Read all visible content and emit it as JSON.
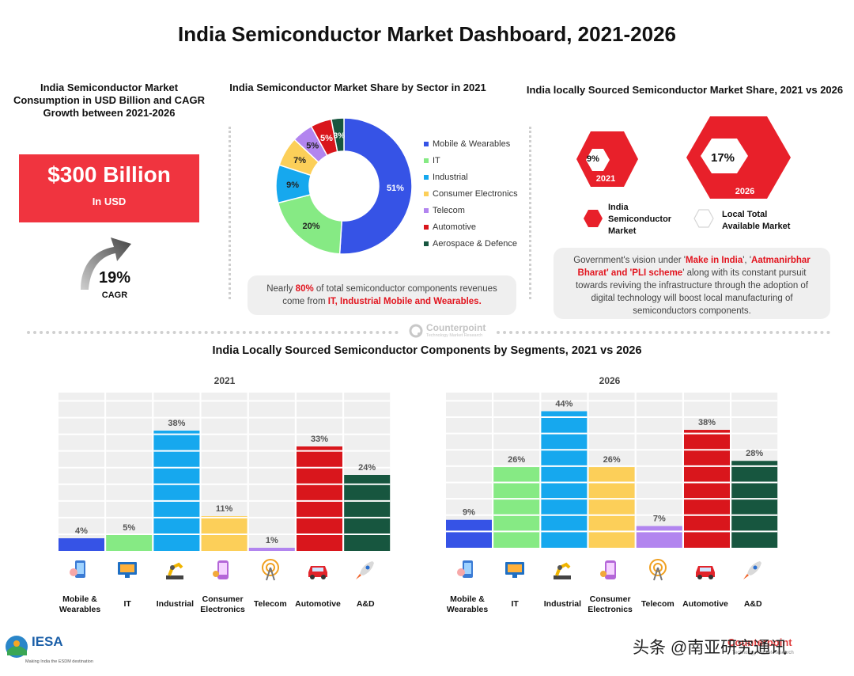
{
  "title": "India Semiconductor Market Dashboard, 2021-2026",
  "consumption": {
    "heading_line1": "India Semiconductor Market",
    "heading_line2": "Consumption in USD Billion and CAGR",
    "heading_line3": "Growth between 2021-2026",
    "value": "$300 Billion",
    "unit": "In USD",
    "cagr_value": "19%",
    "cagr_label": "CAGR"
  },
  "sector_share": {
    "heading": "India Semiconductor Market Share by Sector in 2021",
    "note_pre": "Nearly ",
    "note_pct": "80%",
    "note_mid": " of total semiconductor components revenues",
    "note_line2_pre": "come from ",
    "note_highlight": "IT, Industrial Mobile and Wearables."
  },
  "local_share": {
    "heading": "India locally Sourced Semiconductor Market Share, 2021 vs 2026",
    "hex_2021_value": "9%",
    "hex_2021_year": "2021",
    "hex_2026_value": "17%",
    "hex_2026_year": "2026",
    "legend_india_1": "India",
    "legend_india_2": "Semiconductor",
    "legend_india_3": "Market",
    "legend_local_1": "Local Total",
    "legend_local_2": "Available Market",
    "note_l1_pre": "Government's vision under '",
    "note_l1_h1": "Make in India",
    "note_l1_mid": "', '",
    "note_l1_h2": "Aatmanirbhar",
    "note_l2_h": "Bharat' and 'PLI scheme",
    "note_l2_post": "' along with its constant pursuit",
    "note_l3": "towards reviving the infrastructure through the adoption of",
    "note_l4": "digital technology will boost local manufacturing of",
    "note_l5": "semiconductors components."
  },
  "counterpoint": {
    "name": "Counterpoint",
    "sub": "Technology Market Research"
  },
  "segments": {
    "heading": "India Locally Sourced Semiconductor Components by Segments, 2021 vs 2026",
    "labels": [
      [
        "Mobile &",
        "Wearables"
      ],
      [
        "IT"
      ],
      [
        "Industrial"
      ],
      [
        "Consumer",
        "Electronics"
      ],
      [
        "Telecom"
      ],
      [
        "Automotive"
      ],
      [
        "A&D"
      ]
    ],
    "icons": [
      "mobile-icon",
      "monitor-icon",
      "robot-arm-icon",
      "gadgets-icon",
      "antenna-icon",
      "car-icon",
      "rocket-icon"
    ]
  },
  "footer": {
    "iesa": "IESA",
    "iesa_tag": "Making India the ESDM destination",
    "watermark": "头条 @南亚研究通讯",
    "cp_name": "Counterpoint",
    "cp_sub": "Technology Market Research"
  },
  "chart_data": [
    {
      "type": "pie",
      "title": "India Semiconductor Market Share by Sector in 2021",
      "categories": [
        "Mobile & Wearables",
        "IT",
        "Industrial",
        "Consumer Electronics",
        "Telecom",
        "Automotive",
        "Aerospace & Defence"
      ],
      "values": [
        51,
        20,
        9,
        7,
        5,
        5,
        3
      ],
      "labels": [
        "51%",
        "20%",
        "9%",
        "7%",
        "5%",
        "5%",
        "3%"
      ],
      "colors": [
        "#3653e6",
        "#86ea84",
        "#16a8ee",
        "#fccf59",
        "#b285ef",
        "#d9161c",
        "#17563f"
      ],
      "donut": true
    },
    {
      "type": "bar",
      "title": "2021",
      "categories": [
        "Mobile & Wearables",
        "IT",
        "Industrial",
        "Consumer Electronics",
        "Telecom",
        "Automotive",
        "A&D"
      ],
      "values": [
        4,
        5,
        38,
        11,
        1,
        33,
        24
      ],
      "labels": [
        "4%",
        "5%",
        "38%",
        "11%",
        "1%",
        "33%",
        "24%"
      ],
      "colors": [
        "#3653e6",
        "#86ea84",
        "#16a8ee",
        "#fccf59",
        "#b285ef",
        "#d9161c",
        "#17563f"
      ],
      "ylim": [
        0,
        50
      ]
    },
    {
      "type": "bar",
      "title": "2026",
      "categories": [
        "Mobile & Wearables",
        "IT",
        "Industrial",
        "Consumer Electronics",
        "Telecom",
        "Automotive",
        "A&D"
      ],
      "values": [
        9,
        26,
        44,
        26,
        7,
        38,
        28
      ],
      "labels": [
        "9%",
        "26%",
        "44%",
        "26%",
        "7%",
        "38%",
        "28%"
      ],
      "colors": [
        "#3653e6",
        "#86ea84",
        "#16a8ee",
        "#fccf59",
        "#b285ef",
        "#d9161c",
        "#17563f"
      ],
      "ylim": [
        0,
        50
      ]
    }
  ]
}
